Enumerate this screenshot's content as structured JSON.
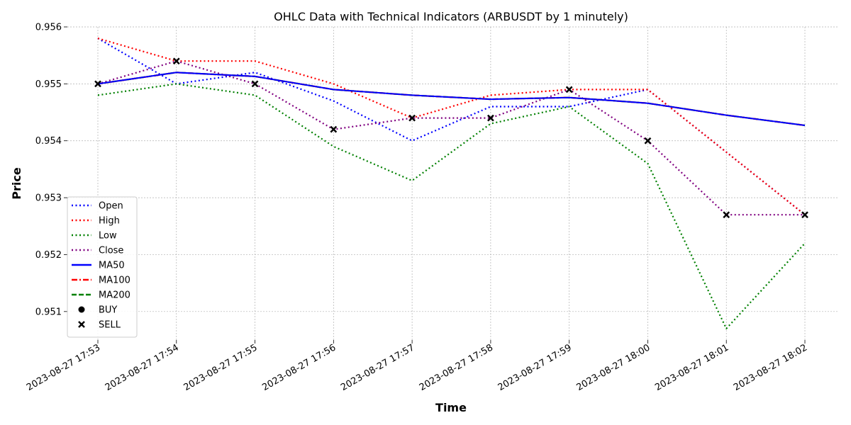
{
  "chart_data": {
    "type": "line",
    "title": "OHLC Data with Technical Indicators (ARBUSDT by 1 minutely)",
    "xlabel": "Time",
    "ylabel": "Price",
    "x": [
      "2023-08-27 17:53",
      "2023-08-27 17:54",
      "2023-08-27 17:55",
      "2023-08-27 17:56",
      "2023-08-27 17:57",
      "2023-08-27 17:58",
      "2023-08-27 17:59",
      "2023-08-27 18:00",
      "2023-08-27 18:01",
      "2023-08-27 18:02"
    ],
    "ylim": [
      0.9505,
      0.956
    ],
    "yticks": [
      0.951,
      0.952,
      0.953,
      0.954,
      0.955,
      0.956
    ],
    "grid": true,
    "legend_position": "lower-left",
    "series": [
      {
        "name": "Open",
        "style": "dotted",
        "color": "#0000ff",
        "values": [
          0.9558,
          0.955,
          0.9552,
          0.9547,
          0.954,
          0.9546,
          0.9546,
          0.9549,
          0.9538,
          0.9527
        ]
      },
      {
        "name": "High",
        "style": "dotted",
        "color": "#ff0000",
        "values": [
          0.9558,
          0.9554,
          0.9554,
          0.955,
          0.9544,
          0.9548,
          0.9549,
          0.9549,
          0.9538,
          0.9527
        ]
      },
      {
        "name": "Low",
        "style": "dotted",
        "color": "#008000",
        "values": [
          0.9548,
          0.955,
          0.9548,
          0.9539,
          0.9533,
          0.9543,
          0.9546,
          0.9536,
          0.9507,
          0.9522
        ]
      },
      {
        "name": "Close",
        "style": "dotted",
        "color": "#800080",
        "values": [
          0.955,
          0.9554,
          0.955,
          0.9542,
          0.9544,
          0.9544,
          0.9549,
          0.954,
          0.9527,
          0.9527
        ]
      },
      {
        "name": "MA50",
        "style": "solid",
        "color": "#0000ff",
        "values": [
          0.955,
          0.9552,
          0.95513,
          0.9549,
          0.9548,
          0.95473,
          0.95476,
          0.95466,
          0.95445,
          0.95427
        ]
      },
      {
        "name": "MA100",
        "style": "dashdot",
        "color": "#ff0000",
        "values": [
          0.955,
          0.9552,
          0.95513,
          0.9549,
          0.9548,
          0.95473,
          0.95476,
          0.95466,
          0.95445,
          0.95427
        ]
      },
      {
        "name": "MA200",
        "style": "dashed",
        "color": "#008000",
        "values": [
          0.955,
          0.9552,
          0.95513,
          0.9549,
          0.9548,
          0.95473,
          0.95476,
          0.95466,
          0.95445,
          0.95427
        ]
      }
    ],
    "markers": [
      {
        "name": "BUY",
        "symbol": "circle",
        "color": "#000000",
        "points": []
      },
      {
        "name": "SELL",
        "symbol": "x",
        "color": "#000000",
        "points": [
          {
            "x": "2023-08-27 17:53",
            "y": 0.955
          },
          {
            "x": "2023-08-27 17:54",
            "y": 0.9554
          },
          {
            "x": "2023-08-27 17:55",
            "y": 0.955
          },
          {
            "x": "2023-08-27 17:56",
            "y": 0.9542
          },
          {
            "x": "2023-08-27 17:57",
            "y": 0.9544
          },
          {
            "x": "2023-08-27 17:58",
            "y": 0.9544
          },
          {
            "x": "2023-08-27 17:59",
            "y": 0.9549
          },
          {
            "x": "2023-08-27 18:00",
            "y": 0.954
          },
          {
            "x": "2023-08-27 18:01",
            "y": 0.9527
          },
          {
            "x": "2023-08-27 18:02",
            "y": 0.9527
          }
        ]
      }
    ]
  }
}
